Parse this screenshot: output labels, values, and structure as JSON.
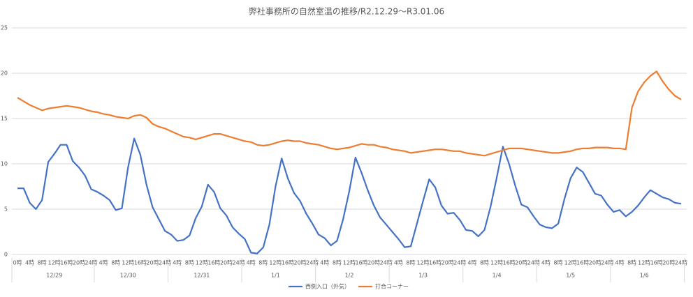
{
  "chart_data": {
    "type": "line",
    "title": "弊社事務所の自然室温の推移/R2.12.29～R3.01.06",
    "categories": [
      "0時",
      null,
      "4時",
      null,
      "8時",
      null,
      "12時",
      null,
      "16時",
      null,
      "20時",
      null,
      "24時",
      null,
      "4時",
      null,
      "8時",
      null,
      "12時",
      null,
      "16時",
      null,
      "20時",
      null,
      "24時",
      null,
      "4時",
      null,
      "8時",
      null,
      "12時",
      null,
      "16時",
      null,
      "20時",
      null,
      "24時",
      null,
      "4時",
      null,
      "8時",
      null,
      "12時",
      null,
      "16時",
      null,
      "20時",
      null,
      "24時",
      null,
      "4時",
      null,
      "8時",
      null,
      "12時",
      null,
      "16時",
      null,
      "20時",
      null,
      "24時",
      null,
      "4時",
      null,
      "8時",
      null,
      "12時",
      null,
      "16時",
      null,
      "20時",
      null,
      "24時",
      null,
      "4時",
      null,
      "8時",
      null,
      "12時",
      null,
      "16時",
      null,
      "20時",
      null,
      "24時",
      null,
      "4時",
      null,
      "8時",
      null,
      "12時",
      null,
      "16時",
      null,
      "20時",
      null,
      "24時",
      null,
      "4時",
      null,
      "8時",
      null,
      "12時",
      null,
      "16時",
      null,
      "20時",
      null,
      "24時"
    ],
    "groups": [
      "12/29",
      "12/30",
      "12/31",
      "1/1",
      "1/2",
      "1/3",
      "1/4",
      "1/5",
      "1/6"
    ],
    "series": [
      {
        "name": "西側入口（外気）",
        "color": "#4472c4",
        "values": [
          7.3,
          7.3,
          5.7,
          5.0,
          6.0,
          10.2,
          11.1,
          12.1,
          12.1,
          10.3,
          9.6,
          8.7,
          7.2,
          6.9,
          6.5,
          6.0,
          4.9,
          5.1,
          9.6,
          12.8,
          11.0,
          7.7,
          5.2,
          3.9,
          2.6,
          2.2,
          1.5,
          1.6,
          2.1,
          4.0,
          5.3,
          7.7,
          6.9,
          5.1,
          4.3,
          3.0,
          2.3,
          1.7,
          0.2,
          0.1,
          0.8,
          3.3,
          7.5,
          10.6,
          8.4,
          6.8,
          5.9,
          4.5,
          3.4,
          2.2,
          1.8,
          1.0,
          1.5,
          3.9,
          7.0,
          10.7,
          9.0,
          7.1,
          5.4,
          4.1,
          3.3,
          2.5,
          1.7,
          0.8,
          0.9,
          3.4,
          5.9,
          8.3,
          7.4,
          5.4,
          4.5,
          4.6,
          3.8,
          2.7,
          2.6,
          2.0,
          2.7,
          5.3,
          8.5,
          11.9,
          10.0,
          7.6,
          5.5,
          5.2,
          4.2,
          3.3,
          3.0,
          2.9,
          3.4,
          6.1,
          8.4,
          9.6,
          9.1,
          7.9,
          6.7,
          6.5,
          5.5,
          4.7,
          4.9,
          4.2,
          4.7,
          5.4,
          6.3,
          7.1,
          6.7,
          6.3,
          6.1,
          5.7,
          5.6
        ]
      },
      {
        "name": "打合コーナー",
        "color": "#ed7d31",
        "values": [
          17.3,
          16.9,
          16.5,
          16.2,
          15.9,
          16.1,
          16.2,
          16.3,
          16.4,
          16.3,
          16.2,
          16.0,
          15.8,
          15.7,
          15.5,
          15.4,
          15.2,
          15.1,
          15.0,
          15.3,
          15.4,
          15.1,
          14.4,
          14.1,
          13.9,
          13.6,
          13.3,
          13.0,
          12.9,
          12.7,
          12.9,
          13.1,
          13.3,
          13.3,
          13.1,
          12.9,
          12.7,
          12.5,
          12.4,
          12.1,
          12.0,
          12.1,
          12.3,
          12.5,
          12.6,
          12.5,
          12.5,
          12.3,
          12.2,
          12.1,
          11.9,
          11.7,
          11.6,
          11.7,
          11.8,
          12.0,
          12.2,
          12.1,
          12.1,
          11.9,
          11.8,
          11.6,
          11.5,
          11.4,
          11.2,
          11.3,
          11.4,
          11.5,
          11.6,
          11.6,
          11.5,
          11.4,
          11.4,
          11.2,
          11.1,
          11.0,
          10.9,
          11.1,
          11.3,
          11.5,
          11.7,
          11.7,
          11.7,
          11.6,
          11.5,
          11.4,
          11.3,
          11.2,
          11.2,
          11.3,
          11.4,
          11.6,
          11.7,
          11.7,
          11.8,
          11.8,
          11.8,
          11.7,
          11.7,
          11.6,
          16.2,
          18.0,
          19.0,
          19.7,
          20.2,
          19.1,
          18.2,
          17.5,
          17.1
        ]
      }
    ],
    "ylim": [
      0,
      25
    ],
    "yticks": [
      0,
      5,
      10,
      15,
      20,
      25
    ],
    "grid": true,
    "legend": "bottom"
  }
}
